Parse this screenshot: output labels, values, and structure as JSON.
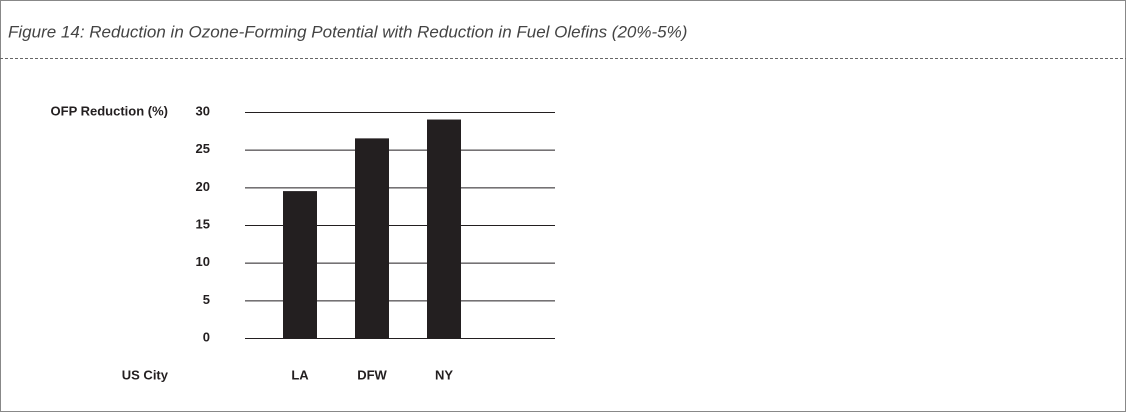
{
  "chart_data": {
    "type": "bar",
    "title": "Figure 14: Reduction in Ozone-Forming Potential with Reduction in Fuel Olefins (20%-5%)",
    "y_label": "OFP Reduction (%)",
    "x_label": "US City",
    "categories": [
      "LA",
      "DFW",
      "NY"
    ],
    "values": [
      19.5,
      26.5,
      29
    ],
    "color": "#231f20",
    "ylim": [
      0,
      30
    ],
    "yticks": [
      0,
      5,
      10,
      15,
      20,
      25,
      30
    ],
    "grid": true
  }
}
